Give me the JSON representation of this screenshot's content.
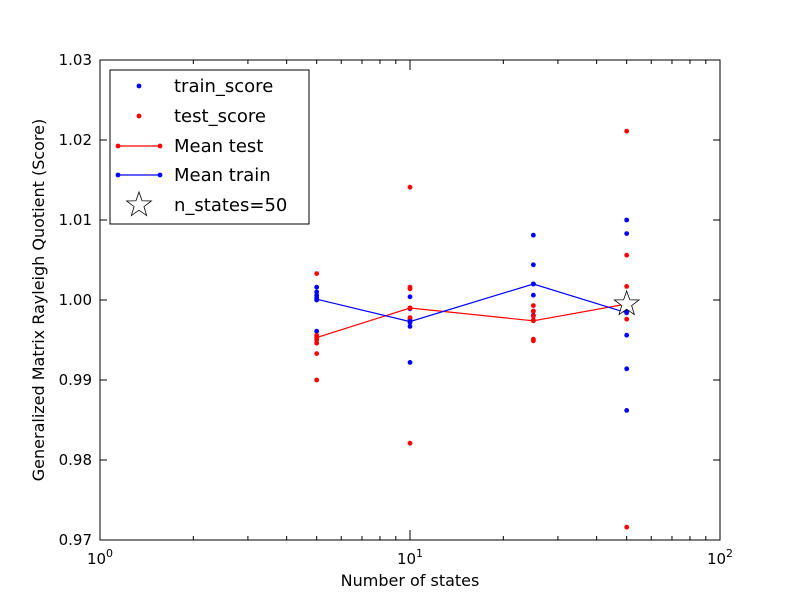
{
  "chart_data": {
    "type": "scatter",
    "title": "",
    "xlabel": "Number of states",
    "ylabel": "Generalized Matrix Rayleigh Quotient (Score)",
    "x_scale": "log",
    "xlim": [
      1,
      100
    ],
    "ylim": [
      0.97,
      1.03
    ],
    "x_ticks": [
      {
        "value": 1,
        "base": "10",
        "exp": "0"
      },
      {
        "value": 10,
        "base": "10",
        "exp": "1"
      },
      {
        "value": 100,
        "base": "10",
        "exp": "2"
      }
    ],
    "y_ticks": [
      "0.97",
      "0.98",
      "0.99",
      "1.00",
      "1.01",
      "1.02",
      "1.03"
    ],
    "grid": false,
    "legend_position": "top-left",
    "colors": {
      "train": "#0000ff",
      "test": "#ff0000",
      "star_fill": "#ffffff",
      "star_edge": "#000000"
    },
    "series": [
      {
        "name": "train_score",
        "kind": "points",
        "color": "#0000ff",
        "points": [
          [
            5,
            1.0016
          ],
          [
            5,
            1.001
          ],
          [
            5,
            1.0006
          ],
          [
            5,
            1.0003
          ],
          [
            5,
            1.0
          ],
          [
            5,
            0.9961
          ],
          [
            10,
            1.0004
          ],
          [
            10,
            0.9989
          ],
          [
            10,
            0.9976
          ],
          [
            10,
            0.9972
          ],
          [
            10,
            0.9967
          ],
          [
            10,
            0.9922
          ],
          [
            25,
            1.0081
          ],
          [
            25,
            1.0044
          ],
          [
            25,
            1.002
          ],
          [
            25,
            1.0006
          ],
          [
            25,
            0.9986
          ],
          [
            25,
            0.9981
          ],
          [
            50,
            1.01
          ],
          [
            50,
            1.0083
          ],
          [
            50,
            0.9986
          ],
          [
            50,
            0.9956
          ],
          [
            50,
            0.9914
          ],
          [
            50,
            0.9862
          ]
        ]
      },
      {
        "name": "test_score",
        "kind": "points",
        "color": "#ff0000",
        "points": [
          [
            5,
            1.0033
          ],
          [
            5,
            0.9956
          ],
          [
            5,
            0.995
          ],
          [
            5,
            0.9946
          ],
          [
            5,
            0.9933
          ],
          [
            5,
            0.99
          ],
          [
            10,
            1.0141
          ],
          [
            10,
            1.0016
          ],
          [
            10,
            1.0014
          ],
          [
            10,
            0.999
          ],
          [
            10,
            0.9978
          ],
          [
            10,
            0.9821
          ],
          [
            25,
            0.9993
          ],
          [
            25,
            0.9986
          ],
          [
            25,
            0.998
          ],
          [
            25,
            0.9975
          ],
          [
            25,
            0.9951
          ],
          [
            25,
            0.9949
          ],
          [
            50,
            1.0211
          ],
          [
            50,
            1.0056
          ],
          [
            50,
            1.0017
          ],
          [
            50,
            0.9996
          ],
          [
            50,
            0.9976
          ],
          [
            50,
            0.9716
          ]
        ]
      },
      {
        "name": "Mean test",
        "kind": "line",
        "color": "#ff0000",
        "points": [
          [
            5,
            0.9953
          ],
          [
            10,
            0.999
          ],
          [
            25,
            0.9974
          ],
          [
            50,
            0.9995
          ]
        ]
      },
      {
        "name": "Mean train",
        "kind": "line",
        "color": "#0000ff",
        "points": [
          [
            5,
            1.0001
          ],
          [
            10,
            0.9973
          ],
          [
            25,
            1.002
          ],
          [
            50,
            0.9984
          ]
        ]
      },
      {
        "name": "n_states=50",
        "kind": "star",
        "points": [
          [
            50,
            0.9995
          ]
        ]
      }
    ]
  }
}
